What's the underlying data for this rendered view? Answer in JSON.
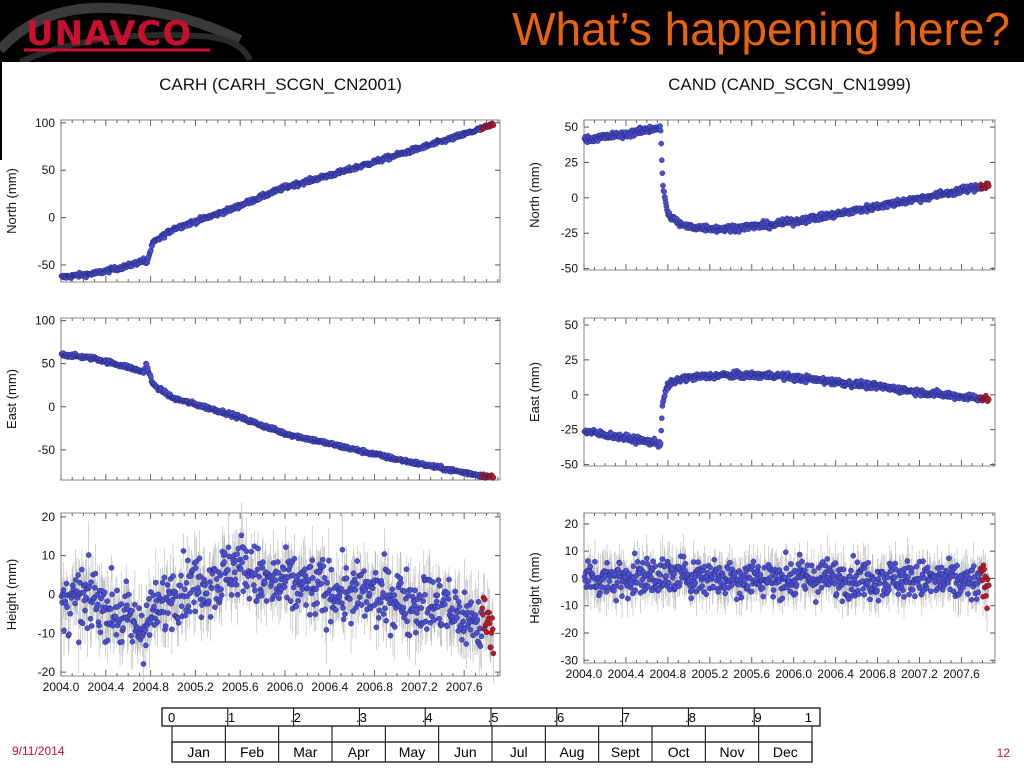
{
  "header": {
    "logo_text": "UNAVCO",
    "title": "What’s happening here?"
  },
  "footer": {
    "date": "9/11/2014",
    "page": "12"
  },
  "colors": {
    "point": "#4b4fd0",
    "recent_point": "#c01818",
    "error_bar": "#b8b8b8",
    "title_orange": "#e8630a",
    "footer_red": "#c8102e"
  },
  "year_scale": {
    "fractions": [
      "0",
      ".1",
      ".2",
      ".3",
      ".4",
      ".5",
      ".6",
      ".7",
      ".8",
      ".9",
      "1"
    ],
    "months": [
      "Jan",
      "Feb",
      "Mar",
      "Apr",
      "May",
      "Jun",
      "Jul",
      "Aug",
      "Sept",
      "Oct",
      "Nov",
      "Dec"
    ]
  },
  "x_ticks": [
    "2004.0",
    "2004.4",
    "2004.8",
    "2005.2",
    "2005.6",
    "2006.0",
    "2006.4",
    "2006.8",
    "2007.2",
    "2007.6"
  ],
  "chart_data": [
    {
      "type": "scatter",
      "station": "CARH",
      "title": "CARH (CARH_SCGN_CN2001)",
      "component": "North",
      "ylabel": "North (mm)",
      "xlim": [
        2004.0,
        2007.92
      ],
      "ylim": [
        -68,
        103
      ],
      "yticks": [
        -50,
        0,
        50,
        100
      ],
      "event_x": 2004.75,
      "recent_from": 2007.76,
      "noise": 1.2,
      "trend": [
        [
          2004.0,
          -63
        ],
        [
          2004.3,
          -59
        ],
        [
          2004.6,
          -51
        ],
        [
          2004.74,
          -45
        ],
        [
          2004.76,
          -50
        ],
        [
          2004.82,
          -27
        ],
        [
          2005.0,
          -12
        ],
        [
          2005.5,
          8
        ],
        [
          2006.0,
          32
        ],
        [
          2006.5,
          48
        ],
        [
          2007.0,
          66
        ],
        [
          2007.5,
          84
        ],
        [
          2007.86,
          98
        ]
      ]
    },
    {
      "type": "scatter",
      "station": "CARH",
      "title": "",
      "component": "East",
      "ylabel": "East (mm)",
      "xlim": [
        2004.0,
        2007.92
      ],
      "ylim": [
        -85,
        103
      ],
      "yticks": [
        -50,
        0,
        50,
        100
      ],
      "event_x": 2004.75,
      "recent_from": 2007.76,
      "noise": 1.2,
      "trend": [
        [
          2004.0,
          61
        ],
        [
          2004.3,
          56
        ],
        [
          2004.6,
          46
        ],
        [
          2004.74,
          40
        ],
        [
          2004.76,
          50
        ],
        [
          2004.82,
          26
        ],
        [
          2005.0,
          10
        ],
        [
          2005.5,
          -8
        ],
        [
          2006.0,
          -31
        ],
        [
          2006.5,
          -46
        ],
        [
          2007.0,
          -61
        ],
        [
          2007.5,
          -74
        ],
        [
          2007.86,
          -82
        ]
      ]
    },
    {
      "type": "scatter",
      "station": "CARH",
      "title": "",
      "component": "Height",
      "ylabel": "Height (mm)",
      "xlim": [
        2004.0,
        2007.92
      ],
      "ylim": [
        -21,
        21
      ],
      "yticks": [
        -20,
        -10,
        0,
        10,
        20
      ],
      "event_x": 2004.75,
      "recent_from": 2007.76,
      "noise": 4,
      "trend": [
        [
          2004.0,
          -3
        ],
        [
          2004.3,
          -1
        ],
        [
          2004.55,
          -6
        ],
        [
          2004.7,
          -9
        ],
        [
          2004.85,
          -5
        ],
        [
          2005.0,
          1
        ],
        [
          2005.4,
          4
        ],
        [
          2005.6,
          8
        ],
        [
          2005.8,
          3
        ],
        [
          2006.2,
          2
        ],
        [
          2006.6,
          0
        ],
        [
          2007.0,
          -1
        ],
        [
          2007.4,
          -3
        ],
        [
          2007.6,
          -6
        ],
        [
          2007.86,
          -8
        ]
      ]
    },
    {
      "type": "scatter",
      "station": "CAND",
      "title": "CAND (CAND_SCGN_CN1999)",
      "component": "North",
      "ylabel": "North (mm)",
      "xlim": [
        2004.0,
        2007.92
      ],
      "ylim": [
        -51,
        55
      ],
      "yticks": [
        -50,
        -25,
        0,
        25,
        50
      ],
      "event_x": 2004.74,
      "recent_from": 2007.78,
      "noise": 1.2,
      "trend": [
        [
          2004.0,
          41
        ],
        [
          2004.4,
          45
        ],
        [
          2004.73,
          50
        ],
        [
          2004.75,
          10
        ],
        [
          2004.8,
          -12
        ],
        [
          2004.95,
          -20
        ],
        [
          2005.3,
          -22
        ],
        [
          2005.8,
          -19
        ],
        [
          2006.3,
          -13
        ],
        [
          2006.8,
          -6
        ],
        [
          2007.3,
          1
        ],
        [
          2007.86,
          9
        ]
      ]
    },
    {
      "type": "scatter",
      "station": "CAND",
      "title": "",
      "component": "East",
      "ylabel": "East (mm)",
      "xlim": [
        2004.0,
        2007.92
      ],
      "ylim": [
        -51,
        55
      ],
      "yticks": [
        -50,
        -25,
        0,
        25,
        50
      ],
      "event_x": 2004.74,
      "recent_from": 2007.78,
      "noise": 1.2,
      "trend": [
        [
          2004.0,
          -26
        ],
        [
          2004.4,
          -31
        ],
        [
          2004.73,
          -35
        ],
        [
          2004.75,
          -5
        ],
        [
          2004.8,
          7
        ],
        [
          2004.95,
          12
        ],
        [
          2005.3,
          14
        ],
        [
          2005.8,
          14
        ],
        [
          2006.3,
          10
        ],
        [
          2006.8,
          6
        ],
        [
          2007.3,
          1
        ],
        [
          2007.86,
          -3
        ]
      ]
    },
    {
      "type": "scatter",
      "station": "CAND",
      "title": "",
      "component": "Height",
      "ylabel": "Height (mm)",
      "xlim": [
        2004.0,
        2007.92
      ],
      "ylim": [
        -31,
        24
      ],
      "yticks": [
        -30,
        -20,
        -10,
        0,
        10,
        20
      ],
      "event_x": 2004.74,
      "recent_from": 2007.78,
      "noise": 3.5,
      "trend": [
        [
          2004.0,
          0
        ],
        [
          2005.0,
          1
        ],
        [
          2006.0,
          0
        ],
        [
          2007.0,
          0
        ],
        [
          2007.86,
          -2
        ]
      ]
    }
  ]
}
